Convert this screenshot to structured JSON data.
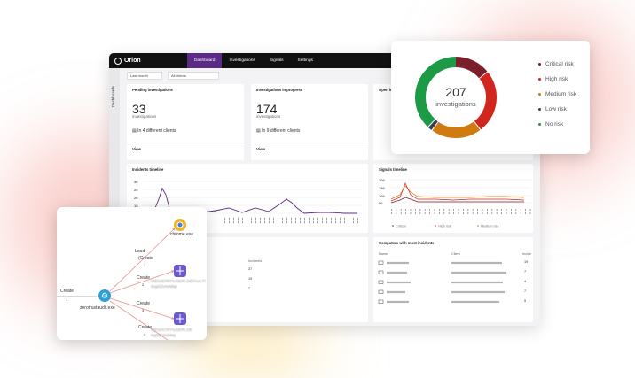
{
  "app": {
    "logo": "Orion",
    "nav": [
      "Dashboard",
      "Investigations",
      "Signals",
      "Settings"
    ],
    "sidebar_label": "Dashboards",
    "filters": {
      "period": "Last month",
      "clients": "All clients"
    }
  },
  "cards": {
    "pending": {
      "title": "Pending investigations",
      "value": "33",
      "unit": "investigations",
      "clients": "In 4 different clients",
      "action": "View"
    },
    "progress": {
      "title": "Investigations in progress",
      "value": "174",
      "unit": "investigations",
      "clients": "In 9 different clients",
      "action": "View"
    },
    "open": {
      "title": "Open inve"
    }
  },
  "incidents_timeline": {
    "title": "Incidents timeline",
    "y_ticks": [
      "30",
      "25",
      "20",
      "15",
      "10",
      "5",
      "0"
    ]
  },
  "signals_timeline": {
    "title": "Signals timeline",
    "y_ticks": [
      "200",
      "150",
      "100",
      "50",
      "0"
    ],
    "legend": [
      "Critical",
      "High risk",
      "Medium risk"
    ]
  },
  "computers": {
    "title": "Computers with most incidents",
    "columns": [
      "Name",
      "Client",
      "Incide"
    ],
    "counts": [
      "19",
      "7",
      "4",
      "7",
      "5"
    ]
  },
  "clients_table": {
    "column": "Incidents",
    "counts": [
      "37",
      "19",
      "2"
    ]
  },
  "donut": {
    "total": "207",
    "label": "investigations",
    "legend": [
      {
        "name": "Critical risk",
        "color": "#7a1f2b"
      },
      {
        "name": "High risk",
        "color": "#d0261e"
      },
      {
        "name": "Medium risk",
        "color": "#d07a12"
      },
      {
        "name": "Low risk",
        "color": "#3a3f55"
      },
      {
        "name": "No risk",
        "color": "#1c9a45"
      }
    ],
    "colors": {
      "critical": "#7a1f2b",
      "high": "#d0261e",
      "medium": "#d07a12",
      "low": "#3a3f55",
      "none": "#1c9a45"
    }
  },
  "graph": {
    "labels": {
      "create_1": "Create",
      "n1": "1",
      "process": "zerotrustaudit.exe",
      "load": "Load",
      "create_7": "(Create",
      "n7": "7",
      "chrome": "chrome.exe",
      "create_2": "Create",
      "n2": "2",
      "reg1": "\\REGISTRY\\USER\\.DEFAULT\\",
      "reg1b": "tings\\ZoneMap",
      "create_3": "Create",
      "n3": "3",
      "reg2": "\\REGISTRY\\USER\\.DE",
      "reg2b": "ings\\ZoneMap",
      "create_4": "Create",
      "n4": "4"
    }
  }
}
